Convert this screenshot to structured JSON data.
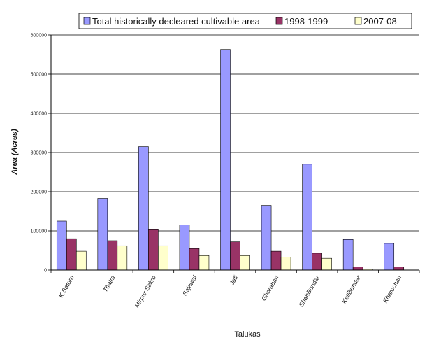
{
  "chart_data": {
    "type": "bar",
    "title": "",
    "xlabel": "Talukas",
    "ylabel": "Area (Acres)",
    "ylim": [
      0,
      600000
    ],
    "yticks": [
      0,
      100000,
      200000,
      300000,
      400000,
      500000,
      600000
    ],
    "grid": "horizontal",
    "legend_position": "top",
    "categories": [
      "K.Batoro",
      "Thatta",
      "Mirpur Sakro",
      "Sajawal",
      "Jati",
      "Ghorabari",
      "ShahBundar",
      "KetiBundar",
      "Kharochan"
    ],
    "series": [
      {
        "name": "Total historically decleared cultivable area",
        "color": "#9999ff",
        "values": [
          125000,
          183000,
          315000,
          115000,
          563000,
          165000,
          270000,
          78000,
          68000
        ]
      },
      {
        "name": "1998-1999",
        "color": "#993366",
        "values": [
          80000,
          75000,
          103000,
          55000,
          72000,
          48000,
          43000,
          8000,
          8000
        ]
      },
      {
        "name": "2007-08",
        "color": "#ffffcc",
        "values": [
          48000,
          62000,
          62000,
          37000,
          37000,
          33000,
          30000,
          3000,
          0
        ]
      }
    ]
  }
}
